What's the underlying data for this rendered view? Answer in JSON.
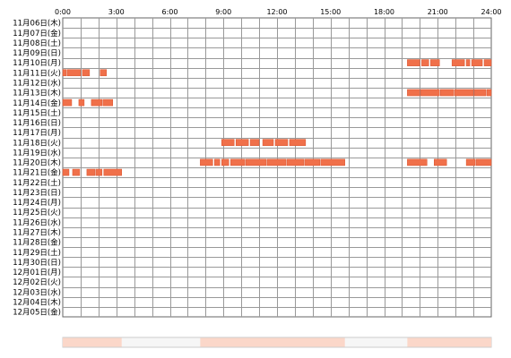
{
  "chart_data": {
    "type": "heatmap",
    "x_ticks": [
      "0:00",
      "3:00",
      "6:00",
      "9:00",
      "12:00",
      "15:00",
      "18:00",
      "21:00",
      "24:00"
    ],
    "x_unit": "hour",
    "xlim": [
      0,
      24
    ],
    "rows": [
      {
        "label": "11月06日(木)",
        "segments": []
      },
      {
        "label": "11月07日(金)",
        "segments": []
      },
      {
        "label": "11月08日(土)",
        "segments": []
      },
      {
        "label": "11月09日(日)",
        "segments": []
      },
      {
        "label": "11月10日(月)",
        "segments": [
          [
            19.3,
            20.0
          ],
          [
            20.1,
            20.5
          ],
          [
            20.6,
            21.1
          ],
          [
            21.8,
            22.5
          ],
          [
            22.6,
            22.8
          ],
          [
            22.9,
            23.5
          ],
          [
            23.6,
            24.0
          ]
        ]
      },
      {
        "label": "11月11日(火)",
        "segments": [
          [
            0.0,
            0.2
          ],
          [
            0.25,
            1.0
          ],
          [
            1.1,
            1.5
          ],
          [
            2.1,
            2.45
          ]
        ]
      },
      {
        "label": "11月12日(水)",
        "segments": []
      },
      {
        "label": "11月13日(木)",
        "segments": [
          [
            19.3,
            20.0
          ],
          [
            20.05,
            21.1
          ],
          [
            21.15,
            21.9
          ],
          [
            21.95,
            23.0
          ],
          [
            23.05,
            23.7
          ],
          [
            23.75,
            24.0
          ]
        ]
      },
      {
        "label": "11月14日(金)",
        "segments": [
          [
            0.0,
            0.5
          ],
          [
            0.9,
            1.2
          ],
          [
            1.6,
            2.2
          ],
          [
            2.25,
            2.8
          ]
        ]
      },
      {
        "label": "11月15日(土)",
        "segments": []
      },
      {
        "label": "11月16日(日)",
        "segments": []
      },
      {
        "label": "11月17日(月)",
        "segments": []
      },
      {
        "label": "11月18日(火)",
        "segments": [
          [
            8.9,
            9.6
          ],
          [
            9.7,
            10.4
          ],
          [
            10.5,
            11.0
          ],
          [
            11.2,
            11.8
          ],
          [
            11.9,
            12.6
          ],
          [
            12.7,
            13.6
          ]
        ]
      },
      {
        "label": "11月19日(水)",
        "segments": []
      },
      {
        "label": "11月20日(木)",
        "segments": [
          [
            7.7,
            8.4
          ],
          [
            8.5,
            8.8
          ],
          [
            8.9,
            9.3
          ],
          [
            9.4,
            10.2
          ],
          [
            10.25,
            11.4
          ],
          [
            11.45,
            12.5
          ],
          [
            12.55,
            13.5
          ],
          [
            13.55,
            14.4
          ],
          [
            14.45,
            15.8
          ],
          [
            19.3,
            20.4
          ],
          [
            20.8,
            21.5
          ],
          [
            22.6,
            23.1
          ],
          [
            23.15,
            24.0
          ]
        ]
      },
      {
        "label": "11月21日(金)",
        "segments": [
          [
            0.0,
            0.35
          ],
          [
            0.55,
            0.95
          ],
          [
            1.35,
            1.8
          ],
          [
            1.85,
            2.2
          ],
          [
            2.3,
            3.3
          ]
        ]
      },
      {
        "label": "11月22日(土)",
        "segments": []
      },
      {
        "label": "11月23日(日)",
        "segments": []
      },
      {
        "label": "11月24日(月)",
        "segments": []
      },
      {
        "label": "11月25日(火)",
        "segments": []
      },
      {
        "label": "11月26日(水)",
        "segments": []
      },
      {
        "label": "11月27日(木)",
        "segments": []
      },
      {
        "label": "11月28日(金)",
        "segments": []
      },
      {
        "label": "11月29日(土)",
        "segments": []
      },
      {
        "label": "11月30日(日)",
        "segments": []
      },
      {
        "label": "12月01日(月)",
        "segments": []
      },
      {
        "label": "12月02日(火)",
        "segments": []
      },
      {
        "label": "12月03日(水)",
        "segments": []
      },
      {
        "label": "12月04日(木)",
        "segments": []
      },
      {
        "label": "12月05日(金)",
        "segments": []
      }
    ],
    "summary_bar": [
      [
        0.0,
        3.3
      ],
      [
        7.7,
        15.8
      ],
      [
        19.3,
        24.0
      ]
    ],
    "colors": {
      "bar": "#f0704a",
      "bar_edge": "#d9532e",
      "summary": "#fbd7c9",
      "grid": "#999999",
      "frame": "#666666"
    }
  }
}
